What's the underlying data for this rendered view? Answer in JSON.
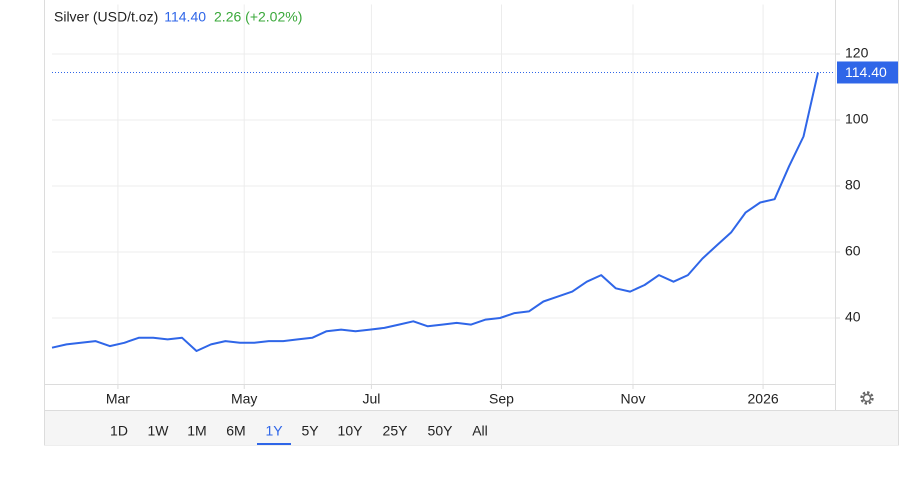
{
  "header": {
    "name": "Silver (USD/t.oz)",
    "price": "114.40",
    "change": "2.26 (+2.02%)"
  },
  "chart_data": {
    "type": "line",
    "series": [
      {
        "name": "Silver (USD/t.oz)",
        "color": "#2f66e8",
        "values": [
          31,
          32,
          32.5,
          33,
          31.5,
          32.5,
          34,
          34,
          33.5,
          34,
          30,
          32,
          33,
          32.5,
          32.5,
          33,
          33,
          33.5,
          34,
          36,
          36.5,
          36,
          36.5,
          37,
          38,
          39,
          37.5,
          38,
          38.5,
          38,
          39.5,
          40,
          41.5,
          42,
          45,
          46.5,
          48,
          51,
          53,
          49,
          48,
          50,
          53,
          51,
          53,
          58,
          62,
          66,
          72,
          75,
          76,
          86,
          95,
          114.4
        ]
      }
    ],
    "xlim": [
      0,
      53
    ],
    "xticks": [
      {
        "value": 4.56,
        "label": "Mar"
      },
      {
        "value": 13.3,
        "label": "May"
      },
      {
        "value": 22.1,
        "label": "Jul"
      },
      {
        "value": 31.1,
        "label": "Sep"
      },
      {
        "value": 40.2,
        "label": "Nov"
      },
      {
        "value": 49.2,
        "label": "2026"
      }
    ],
    "ylim": [
      20,
      135
    ],
    "yticks": [
      40,
      60,
      80,
      100,
      120
    ],
    "grid": true
  },
  "ranges": [
    "1D",
    "1W",
    "1M",
    "6M",
    "1Y",
    "5Y",
    "10Y",
    "25Y",
    "50Y",
    "All"
  ],
  "selected_range": "1Y"
}
